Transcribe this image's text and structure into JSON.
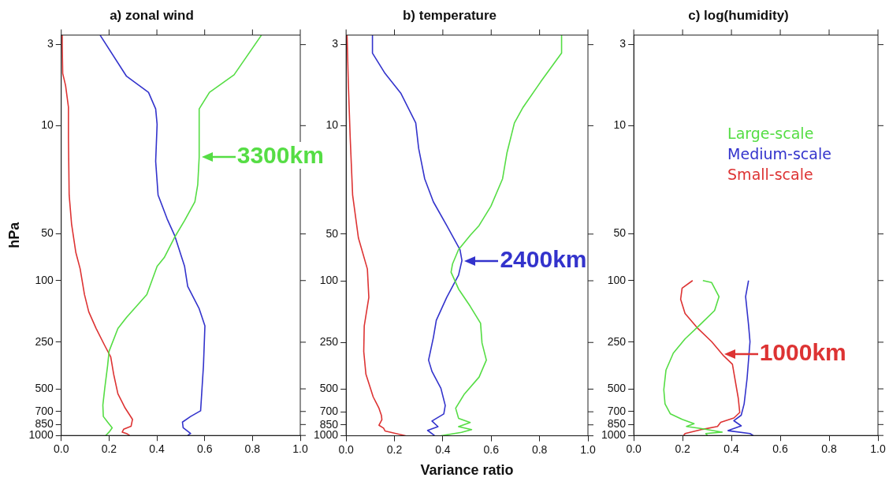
{
  "chart_data": [
    {
      "type": "line",
      "title": "a) zonal wind",
      "ylabel": "hPa",
      "log": "y",
      "marker": "none",
      "grid": false,
      "legend": false,
      "xlim": [
        0,
        1
      ],
      "xticks": [
        {
          "value": 0,
          "label": "0.0"
        },
        {
          "value": 0.2,
          "label": "0.2"
        },
        {
          "value": 0.4,
          "label": "0.4"
        },
        {
          "value": 0.6,
          "label": "0.6"
        },
        {
          "value": 0.8,
          "label": "0.8"
        },
        {
          "value": 1,
          "label": "1.0"
        }
      ],
      "ylim": [
        1000,
        2.6
      ],
      "yticks": [
        3,
        10,
        50,
        100,
        250,
        500,
        700,
        850,
        1000
      ],
      "series": [
        {
          "color": "#55dd44",
          "x": [
            0.838,
            0.723,
            0.62,
            0.577,
            0.577,
            0.571,
            0.559,
            0.516,
            0.476,
            0.431,
            0.401,
            0.358,
            0.273,
            0.237,
            0.2,
            0.194,
            0.182,
            0.174,
            0.176,
            0.194,
            0.213,
            0.2,
            0.186
          ],
          "values": [
            2.6,
            4.7,
            6.1,
            7.8,
            16,
            24,
            31,
            41,
            52,
            71,
            81,
            123,
            173,
            204,
            286,
            353,
            494,
            637,
            754,
            820,
            892,
            951,
            1000
          ]
        },
        {
          "color": "#3333cc",
          "x": [
            0.162,
            0.273,
            0.365,
            0.395,
            0.401,
            0.395,
            0.405,
            0.443,
            0.474,
            0.516,
            0.529,
            0.577,
            0.601,
            0.595,
            0.589,
            0.583,
            0.541,
            0.507,
            0.51,
            0.541,
            0.529
          ],
          "values": [
            2.6,
            4.8,
            6.1,
            7.8,
            9.8,
            17,
            28,
            40,
            51,
            81,
            109,
            152,
            196,
            353,
            494,
            693,
            754,
            820,
            892,
            971,
            1000
          ]
        },
        {
          "color": "#dd3333",
          "x": [
            0.004,
            0.004,
            0.006,
            0.018,
            0.03,
            0.03,
            0.033,
            0.043,
            0.061,
            0.079,
            0.097,
            0.115,
            0.146,
            0.182,
            0.207,
            0.219,
            0.237,
            0.267,
            0.298,
            0.292,
            0.261,
            0.255,
            0.273,
            0.286
          ],
          "values": [
            2.6,
            3,
            4.6,
            5.5,
            7.6,
            12,
            28,
            43,
            66,
            84,
            123,
            159,
            204,
            263,
            311,
            401,
            538,
            664,
            787,
            873,
            912,
            951,
            971,
            1000
          ]
        }
      ],
      "annotations": [
        {
          "text": "3300km",
          "x": 0.577,
          "y": 16
        }
      ]
    },
    {
      "type": "line",
      "title": "b) temperature",
      "xlabel": "Variance ratio",
      "log": "y",
      "marker": "none",
      "grid": false,
      "legend": false,
      "xlim": [
        0,
        1
      ],
      "xticks": [
        {
          "value": 0,
          "label": "0.0"
        },
        {
          "value": 0.2,
          "label": "0.2"
        },
        {
          "value": 0.4,
          "label": "0.4"
        },
        {
          "value": 0.6,
          "label": "0.6"
        },
        {
          "value": 0.8,
          "label": "0.8"
        },
        {
          "value": 1,
          "label": "1.0"
        }
      ],
      "ylim": [
        1000,
        2.6
      ],
      "yticks": [
        3,
        10,
        50,
        100,
        250,
        500,
        700,
        850,
        1000
      ],
      "series": [
        {
          "color": "#55dd44",
          "x": [
            0.891,
            0.891,
            0.805,
            0.732,
            0.696,
            0.665,
            0.647,
            0.599,
            0.55,
            0.513,
            0.465,
            0.44,
            0.434,
            0.465,
            0.513,
            0.556,
            0.562,
            0.58,
            0.55,
            0.489,
            0.453,
            0.465,
            0.513,
            0.465,
            0.519,
            0.477,
            0.392
          ],
          "values": [
            2.6,
            3.4,
            5.2,
            7.6,
            9.6,
            15,
            22,
            33,
            44,
            51,
            63,
            78,
            88,
            113,
            146,
            188,
            252,
            325,
            418,
            538,
            664,
            771,
            820,
            873,
            912,
            951,
            1000
          ]
        },
        {
          "color": "#3333cc",
          "x": [
            0.109,
            0.109,
            0.161,
            0.227,
            0.288,
            0.3,
            0.325,
            0.361,
            0.416,
            0.471,
            0.479,
            0.465,
            0.416,
            0.373,
            0.361,
            0.341,
            0.355,
            0.392,
            0.41,
            0.404,
            0.355,
            0.38,
            0.337,
            0.367
          ],
          "values": [
            2.6,
            3.4,
            4.6,
            6.2,
            9.6,
            14,
            22,
            31,
            44,
            63,
            74,
            92,
            128,
            180,
            232,
            325,
            384,
            494,
            637,
            723,
            803,
            873,
            923,
            1000
          ]
        },
        {
          "color": "#dd3333",
          "x": [
            0.004,
            0.009,
            0.017,
            0.027,
            0.051,
            0.088,
            0.094,
            0.075,
            0.073,
            0.082,
            0.112,
            0.136,
            0.146,
            0.148,
            0.136,
            0.155,
            0.161,
            0.246
          ],
          "values": [
            2.6,
            5.2,
            12,
            28,
            53,
            84,
            128,
            196,
            286,
            401,
            561,
            664,
            738,
            787,
            855,
            892,
            931,
            1000
          ]
        }
      ],
      "annotations": [
        {
          "text": "2400km",
          "x": 0.48,
          "y": 75
        }
      ]
    },
    {
      "type": "line",
      "title": "c) log(humidity)",
      "log": "y",
      "marker": "none",
      "grid": false,
      "legend": "top",
      "xlim": [
        0,
        1
      ],
      "xticks": [
        {
          "value": 0,
          "label": "0.0"
        },
        {
          "value": 0.2,
          "label": "0.2"
        },
        {
          "value": 0.4,
          "label": "0.4"
        },
        {
          "value": 0.6,
          "label": "0.6"
        },
        {
          "value": 0.8,
          "label": "0.8"
        },
        {
          "value": 1,
          "label": "1.0"
        }
      ],
      "ylim": [
        1000,
        2.6
      ],
      "yticks": [
        3,
        10,
        50,
        100,
        250,
        500,
        700,
        850,
        1000
      ],
      "series": [
        {
          "name": "Large-scale",
          "color": "#55dd44",
          "x": [
            0.283,
            0.319,
            0.349,
            0.331,
            0.271,
            0.21,
            0.162,
            0.132,
            0.123,
            0.128,
            0.15,
            0.198,
            0.247,
            0.216,
            0.283,
            0.362,
            0.295,
            0.301
          ],
          "values": [
            100,
            103,
            127,
            156,
            193,
            238,
            294,
            378,
            507,
            625,
            725,
            787,
            839,
            875,
            906,
            951,
            972,
            1000
          ]
        },
        {
          "name": "Medium-scale",
          "color": "#3333cc",
          "x": [
            0.47,
            0.458,
            0.47,
            0.476,
            0.464,
            0.452,
            0.44,
            0.41,
            0.44,
            0.386,
            0.476,
            0.489
          ],
          "values": [
            100,
            127,
            193,
            248,
            429,
            625,
            740,
            803,
            867,
            931,
            972,
            1000
          ]
        },
        {
          "name": "Small-scale",
          "color": "#dd3333",
          "x": [
            0.241,
            0.198,
            0.192,
            0.21,
            0.259,
            0.319,
            0.368,
            0.404,
            0.416,
            0.428,
            0.434,
            0.41,
            0.356,
            0.343,
            0.283,
            0.21,
            0.204
          ],
          "values": [
            100,
            112,
            132,
            163,
            201,
            248,
            306,
            347,
            447,
            575,
            710,
            771,
            822,
            875,
            912,
            972,
            1000
          ]
        }
      ],
      "annotations": [
        {
          "text": "1000km",
          "x": 0.36,
          "y": 300
        }
      ]
    }
  ]
}
